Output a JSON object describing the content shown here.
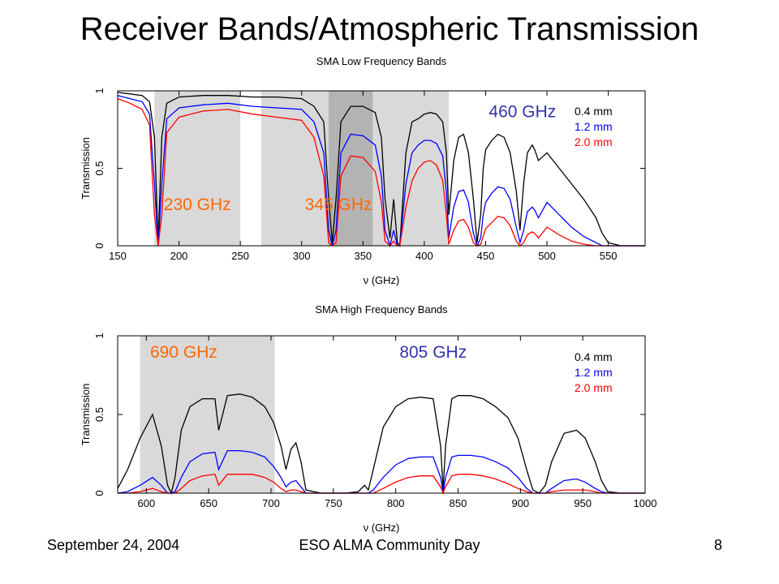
{
  "slide": {
    "title": "Receiver Bands/Atmospheric Transmission",
    "footer_date": "September 24, 2004",
    "footer_event": "ESO ALMA Community Day",
    "page_number": "8"
  },
  "colors": {
    "series": [
      "#000000",
      "#0000ff",
      "#ff0000"
    ],
    "band_shade": "#d9d9d9",
    "band_shade_dark": "#b3b3b3",
    "orange_label": "#ff6600",
    "blue_label": "#3333aa"
  },
  "chart_data": [
    {
      "type": "line",
      "title": "SMA Low Frequency Bands",
      "xlabel": "ν (GHz)",
      "ylabel": "Transmission",
      "xlim": [
        150,
        580
      ],
      "ylim": [
        0,
        1
      ],
      "xticks": [
        150,
        200,
        250,
        300,
        350,
        400,
        450,
        500,
        550
      ],
      "yticks": [
        0,
        0.5,
        1
      ],
      "ytick_labels": [
        "0",
        "0.5",
        "1"
      ],
      "legend": {
        "placement": "top-right",
        "entries": [
          "0.4 mm",
          "1.2 mm",
          "2.0 mm"
        ]
      },
      "shaded_bands": [
        {
          "range": [
            180,
            250
          ],
          "shade": "light"
        },
        {
          "range": [
            267,
            322
          ],
          "shade": "light"
        },
        {
          "range": [
            322,
            358
          ],
          "shade": "dark"
        },
        {
          "range": [
            358,
            420
          ],
          "shade": "light"
        }
      ],
      "band_labels": [
        {
          "text": "230 GHz",
          "x": 215,
          "y": 0.23,
          "color": "orange"
        },
        {
          "text": "345 GHz",
          "x": 330,
          "y": 0.23,
          "color": "orange"
        },
        {
          "text": "460 GHz",
          "x": 480,
          "y": 0.83,
          "color": "blue"
        }
      ],
      "series": [
        {
          "name": "0.4 mm",
          "x": [
            150,
            160,
            170,
            176,
            180,
            183,
            186,
            190,
            200,
            220,
            240,
            260,
            280,
            300,
            310,
            318,
            322,
            325,
            328,
            332,
            340,
            350,
            360,
            365,
            368,
            372,
            375,
            378,
            380,
            385,
            390,
            395,
            400,
            405,
            410,
            415,
            418,
            420,
            424,
            428,
            432,
            436,
            440,
            443,
            446,
            448,
            450,
            455,
            460,
            465,
            470,
            475,
            478,
            481,
            484,
            488,
            490,
            493,
            500,
            510,
            520,
            530,
            540,
            545,
            550,
            560,
            580
          ],
          "y": [
            0.99,
            0.98,
            0.97,
            0.93,
            0.7,
            0.02,
            0.7,
            0.92,
            0.96,
            0.97,
            0.97,
            0.96,
            0.96,
            0.95,
            0.9,
            0.8,
            0.3,
            0.02,
            0.3,
            0.8,
            0.9,
            0.9,
            0.86,
            0.7,
            0.3,
            0.05,
            0.3,
            0.02,
            0.0,
            0.6,
            0.8,
            0.82,
            0.85,
            0.86,
            0.85,
            0.8,
            0.6,
            0.2,
            0.55,
            0.7,
            0.72,
            0.6,
            0.3,
            0.02,
            0.2,
            0.5,
            0.62,
            0.68,
            0.72,
            0.7,
            0.6,
            0.35,
            0.1,
            0.4,
            0.6,
            0.65,
            0.62,
            0.55,
            0.6,
            0.5,
            0.4,
            0.3,
            0.18,
            0.08,
            0.02,
            0.0,
            0.0
          ]
        },
        {
          "name": "1.2 mm",
          "x": [
            150,
            160,
            170,
            176,
            180,
            183,
            186,
            190,
            200,
            220,
            240,
            260,
            280,
            300,
            310,
            318,
            322,
            325,
            328,
            332,
            340,
            350,
            360,
            365,
            368,
            372,
            375,
            378,
            380,
            385,
            390,
            395,
            400,
            405,
            410,
            415,
            418,
            420,
            424,
            428,
            432,
            436,
            440,
            443,
            446,
            448,
            450,
            455,
            460,
            465,
            470,
            475,
            478,
            481,
            484,
            488,
            490,
            493,
            500,
            510,
            520,
            530,
            540,
            545,
            550,
            560,
            580
          ],
          "y": [
            0.97,
            0.95,
            0.93,
            0.85,
            0.4,
            0.0,
            0.4,
            0.82,
            0.89,
            0.91,
            0.92,
            0.9,
            0.89,
            0.88,
            0.8,
            0.6,
            0.1,
            0.0,
            0.1,
            0.6,
            0.72,
            0.71,
            0.65,
            0.45,
            0.1,
            0.0,
            0.1,
            0.0,
            0.0,
            0.4,
            0.6,
            0.65,
            0.68,
            0.68,
            0.66,
            0.58,
            0.35,
            0.05,
            0.25,
            0.35,
            0.36,
            0.28,
            0.08,
            0.0,
            0.05,
            0.2,
            0.28,
            0.34,
            0.38,
            0.37,
            0.3,
            0.12,
            0.02,
            0.1,
            0.22,
            0.25,
            0.23,
            0.18,
            0.28,
            0.2,
            0.12,
            0.06,
            0.02,
            0.0,
            0.0,
            0.0,
            0.0
          ]
        },
        {
          "name": "2.0 mm",
          "x": [
            150,
            160,
            170,
            176,
            180,
            183,
            186,
            190,
            200,
            220,
            240,
            260,
            280,
            300,
            310,
            318,
            322,
            325,
            328,
            332,
            340,
            350,
            360,
            365,
            368,
            372,
            375,
            378,
            380,
            385,
            390,
            395,
            400,
            405,
            410,
            415,
            418,
            420,
            424,
            428,
            432,
            436,
            440,
            443,
            446,
            448,
            450,
            455,
            460,
            465,
            470,
            475,
            478,
            481,
            484,
            488,
            490,
            493,
            500,
            510,
            520,
            530,
            540,
            545,
            550,
            560,
            580
          ],
          "y": [
            0.95,
            0.92,
            0.88,
            0.78,
            0.2,
            0.0,
            0.2,
            0.73,
            0.83,
            0.87,
            0.88,
            0.85,
            0.83,
            0.81,
            0.7,
            0.45,
            0.02,
            0.0,
            0.02,
            0.45,
            0.58,
            0.57,
            0.48,
            0.28,
            0.03,
            0.0,
            0.03,
            0.0,
            0.0,
            0.25,
            0.42,
            0.5,
            0.54,
            0.55,
            0.52,
            0.42,
            0.2,
            0.01,
            0.1,
            0.16,
            0.17,
            0.12,
            0.02,
            0.0,
            0.01,
            0.06,
            0.11,
            0.15,
            0.19,
            0.18,
            0.13,
            0.03,
            0.0,
            0.02,
            0.07,
            0.09,
            0.08,
            0.05,
            0.12,
            0.07,
            0.03,
            0.01,
            0.0,
            0.0,
            0.0,
            0.0,
            0.0
          ]
        }
      ]
    },
    {
      "type": "line",
      "title": "SMA High Frequency Bands",
      "xlabel": "ν (GHz)",
      "ylabel": "Transmission",
      "xlim": [
        577,
        1000
      ],
      "ylim": [
        0,
        1
      ],
      "xticks": [
        600,
        650,
        700,
        750,
        800,
        850,
        900,
        950,
        1000
      ],
      "yticks": [
        0,
        0.5,
        1
      ],
      "ytick_labels": [
        "0",
        "0.5",
        "1"
      ],
      "legend": {
        "placement": "top-right",
        "entries": [
          "0.4 mm",
          "1.2 mm",
          "2.0 mm"
        ]
      },
      "shaded_bands": [
        {
          "range": [
            595,
            703
          ],
          "shade": "light"
        }
      ],
      "band_labels": [
        {
          "text": "690 GHz",
          "x": 630,
          "y": 0.86,
          "color": "orange"
        },
        {
          "text": "805 GHz",
          "x": 830,
          "y": 0.86,
          "color": "blue"
        }
      ],
      "series": [
        {
          "name": "0.4 mm",
          "x": [
            577,
            585,
            595,
            605,
            612,
            617,
            620,
            623,
            628,
            635,
            645,
            655,
            658,
            665,
            675,
            685,
            695,
            702,
            708,
            712,
            716,
            720,
            724,
            728,
            740,
            760,
            770,
            775,
            778,
            782,
            790,
            800,
            810,
            820,
            830,
            836,
            838,
            840,
            845,
            850,
            860,
            870,
            880,
            890,
            898,
            905,
            910,
            915,
            920,
            925,
            935,
            945,
            952,
            960,
            965,
            970,
            980,
            1000
          ],
          "y": [
            0.03,
            0.15,
            0.35,
            0.5,
            0.3,
            0.05,
            0.0,
            0.1,
            0.4,
            0.55,
            0.6,
            0.6,
            0.4,
            0.62,
            0.63,
            0.61,
            0.55,
            0.45,
            0.3,
            0.15,
            0.28,
            0.32,
            0.2,
            0.02,
            0.0,
            0.0,
            0.01,
            0.05,
            0.02,
            0.15,
            0.42,
            0.55,
            0.6,
            0.61,
            0.6,
            0.3,
            0.02,
            0.3,
            0.6,
            0.62,
            0.62,
            0.6,
            0.55,
            0.48,
            0.35,
            0.15,
            0.02,
            0.0,
            0.05,
            0.2,
            0.38,
            0.4,
            0.35,
            0.2,
            0.08,
            0.01,
            0.0,
            0.0
          ]
        },
        {
          "name": "1.2 mm",
          "x": [
            577,
            585,
            595,
            605,
            612,
            617,
            620,
            623,
            628,
            635,
            645,
            655,
            658,
            665,
            675,
            685,
            695,
            702,
            708,
            712,
            716,
            720,
            724,
            728,
            740,
            760,
            770,
            775,
            778,
            782,
            790,
            800,
            810,
            820,
            830,
            836,
            838,
            840,
            845,
            850,
            860,
            870,
            880,
            890,
            898,
            905,
            910,
            915,
            920,
            925,
            935,
            945,
            952,
            960,
            965,
            970,
            980,
            1000
          ],
          "y": [
            0.0,
            0.01,
            0.05,
            0.1,
            0.05,
            0.0,
            0.0,
            0.01,
            0.1,
            0.2,
            0.25,
            0.26,
            0.15,
            0.27,
            0.27,
            0.26,
            0.23,
            0.17,
            0.1,
            0.04,
            0.07,
            0.08,
            0.04,
            0.0,
            0.0,
            0.0,
            0.0,
            0.0,
            0.0,
            0.02,
            0.1,
            0.18,
            0.22,
            0.23,
            0.23,
            0.1,
            0.0,
            0.1,
            0.23,
            0.24,
            0.24,
            0.23,
            0.2,
            0.16,
            0.1,
            0.03,
            0.0,
            0.0,
            0.0,
            0.03,
            0.08,
            0.09,
            0.07,
            0.03,
            0.01,
            0.0,
            0.0,
            0.0
          ]
        },
        {
          "name": "2.0 mm",
          "x": [
            577,
            585,
            595,
            605,
            612,
            617,
            620,
            623,
            628,
            635,
            645,
            655,
            658,
            665,
            675,
            685,
            695,
            702,
            708,
            712,
            716,
            720,
            724,
            728,
            740,
            760,
            770,
            775,
            778,
            782,
            790,
            800,
            810,
            820,
            830,
            836,
            838,
            840,
            845,
            850,
            860,
            870,
            880,
            890,
            898,
            905,
            910,
            915,
            920,
            925,
            935,
            945,
            952,
            960,
            965,
            970,
            980,
            1000
          ],
          "y": [
            0.0,
            0.0,
            0.01,
            0.03,
            0.01,
            0.0,
            0.0,
            0.0,
            0.03,
            0.08,
            0.11,
            0.12,
            0.05,
            0.12,
            0.12,
            0.12,
            0.1,
            0.07,
            0.03,
            0.01,
            0.02,
            0.02,
            0.01,
            0.0,
            0.0,
            0.0,
            0.0,
            0.0,
            0.0,
            0.0,
            0.03,
            0.07,
            0.1,
            0.11,
            0.11,
            0.04,
            0.0,
            0.04,
            0.11,
            0.12,
            0.12,
            0.11,
            0.09,
            0.06,
            0.03,
            0.01,
            0.0,
            0.0,
            0.0,
            0.01,
            0.02,
            0.02,
            0.02,
            0.01,
            0.0,
            0.0,
            0.0,
            0.0
          ]
        }
      ]
    }
  ]
}
